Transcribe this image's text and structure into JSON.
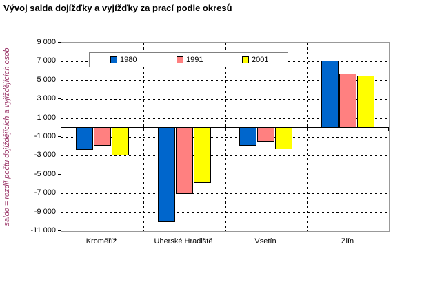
{
  "chart_data": {
    "type": "bar",
    "title": "Vývoj salda dojížďky a vyjížďky za prací podle okresů",
    "ylabel": "saldo = rozdíl počtu dojíždějících a vyjíždějících osob",
    "xlabel": "",
    "categories": [
      "Kroměříž",
      "Uherské Hradiště",
      "Vsetín",
      "Zlín"
    ],
    "series": [
      {
        "name": "1980",
        "color": "#0066CC",
        "values": [
          -2400,
          -10100,
          -2000,
          7100
        ]
      },
      {
        "name": "1991",
        "color": "#FF8080",
        "values": [
          -2000,
          -7100,
          -1500,
          5700
        ]
      },
      {
        "name": "2001",
        "color": "#FFFF00",
        "values": [
          -3000,
          -5900,
          -2300,
          5500
        ]
      }
    ],
    "ylim": [
      -11000,
      9000
    ],
    "ytick_step": 2000,
    "ytick_labels": [
      "9 000",
      "7 000",
      "5 000",
      "3 000",
      "1 000",
      "-1 000",
      "-3 000",
      "-5 000",
      "-7 000",
      "-9 000",
      "-11 000"
    ],
    "legend": {
      "entries": [
        "1980",
        "1991",
        "2001"
      ],
      "position": "top-center-inside"
    },
    "grid": {
      "horizontal": "dashed",
      "vertical_category_separators": "dashed"
    },
    "colors": {
      "axis_title_text": "#993366",
      "grid_line": "#000000",
      "plot_border": "#999999",
      "background": "#FFFFFF"
    }
  }
}
